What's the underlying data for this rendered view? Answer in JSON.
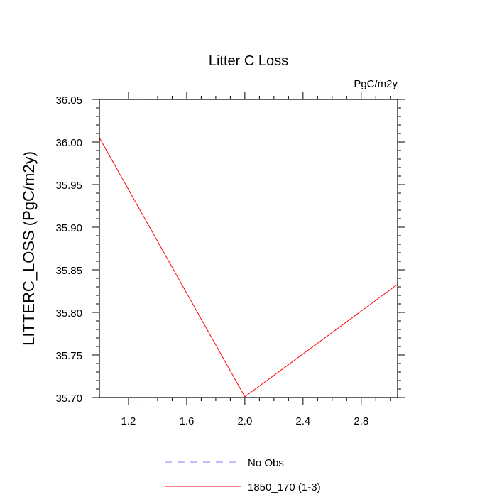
{
  "chart_data": {
    "type": "line",
    "title": "Litter C Loss",
    "units": "PgC/m2y",
    "ylabel": "LITTERC_LOSS  (PgC/m2y)",
    "xlabel": "",
    "xlim": [
      1.0,
      3.05
    ],
    "ylim": [
      35.7,
      36.05
    ],
    "xticks": [
      1.2,
      1.6,
      2.0,
      2.4,
      2.8
    ],
    "xtick_labels": [
      "1.2",
      "1.6",
      "2.0",
      "2.4",
      "2.8"
    ],
    "yticks": [
      35.7,
      35.75,
      35.8,
      35.85,
      35.9,
      35.95,
      36.0,
      36.05
    ],
    "ytick_labels": [
      "35.70",
      "35.75",
      "35.80",
      "35.85",
      "35.90",
      "35.95",
      "36.00",
      "36.05"
    ],
    "grid": false,
    "legend_position": "bottom-center",
    "series": [
      {
        "name": "1850_170 (1-3)",
        "color": "#ff0000",
        "dash": "solid",
        "points": [
          {
            "x": 1.0,
            "y": 36.005
          },
          {
            "x": 2.0,
            "y": 35.701
          },
          {
            "x": 3.05,
            "y": 35.833
          }
        ]
      }
    ],
    "legend": [
      {
        "label": "No Obs",
        "color": "#8080ff",
        "dash": "dashed"
      },
      {
        "label": "1850_170 (1-3)",
        "color": "#ff0000",
        "dash": "solid"
      }
    ]
  }
}
